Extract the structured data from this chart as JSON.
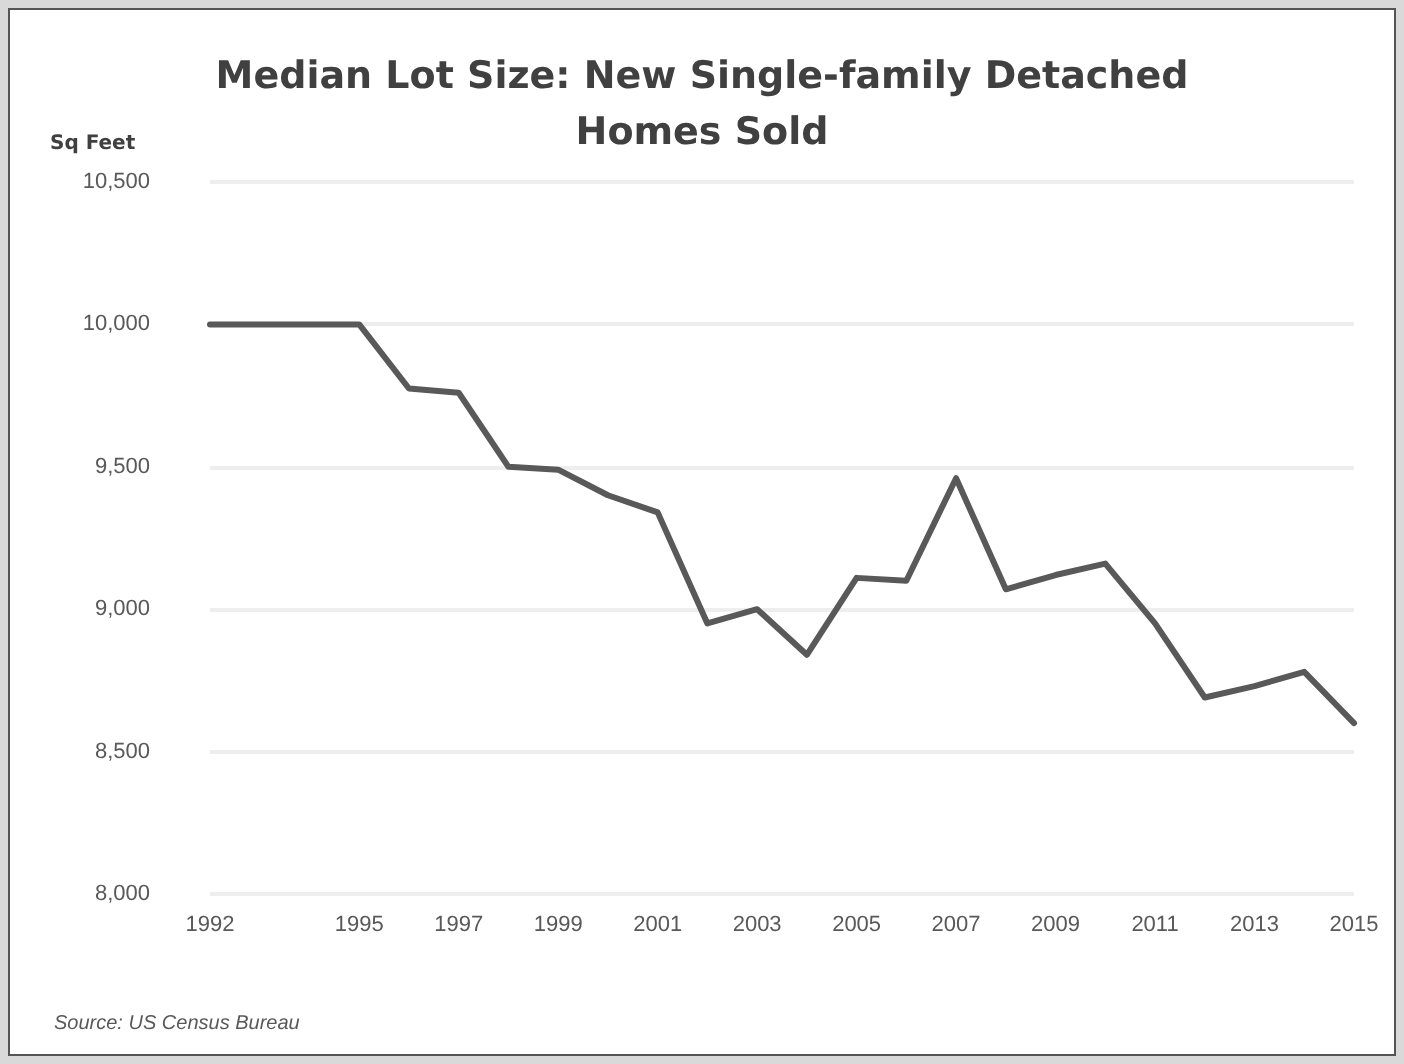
{
  "chart_data": {
    "type": "line",
    "title": "Median Lot Size: New Single-family Detached\nHomes Sold",
    "ylabel": "Sq Feet",
    "annotations": [
      "Source: US Census Bureau"
    ],
    "x": [
      1992,
      1993,
      1994,
      1995,
      1996,
      1997,
      1998,
      1999,
      2000,
      2001,
      2002,
      2003,
      2004,
      2005,
      2006,
      2007,
      2008,
      2009,
      2010,
      2011,
      2012,
      2013,
      2014,
      2015
    ],
    "series": [
      {
        "color": "#595959",
        "values": [
          10000,
          10000,
          10000,
          10000,
          9775,
          9760,
          9500,
          9490,
          9400,
          9340,
          8950,
          9000,
          8840,
          9110,
          9100,
          9460,
          9070,
          9120,
          9160,
          8950,
          8690,
          8730,
          8780,
          8600
        ]
      }
    ],
    "xlim": [
      1992,
      2015
    ],
    "xticks": [
      1992,
      1995,
      1997,
      1999,
      2001,
      2003,
      2005,
      2007,
      2009,
      2011,
      2013,
      2015
    ],
    "ylim": [
      8000,
      10500
    ],
    "yticks": [
      {
        "value": 8000,
        "label": "8,000"
      },
      {
        "value": 8500,
        "label": "8,500"
      },
      {
        "value": 9000,
        "label": "9,000"
      },
      {
        "value": 9500,
        "label": "9,500"
      },
      {
        "value": 10000,
        "label": "10,000"
      },
      {
        "value": 10500,
        "label": "10,500"
      }
    ],
    "grid": "y",
    "marker": "none",
    "line_style": "solid"
  }
}
